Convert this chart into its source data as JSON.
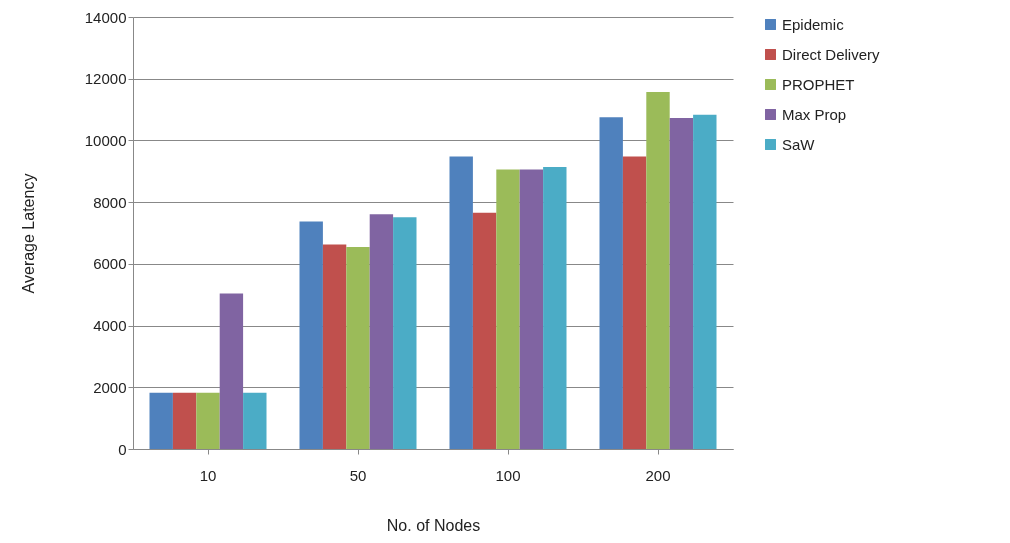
{
  "chart_data": {
    "type": "bar",
    "xlabel": "No. of Nodes",
    "ylabel": "Average Latency",
    "categories": [
      "10",
      "50",
      "100",
      "200"
    ],
    "series": [
      {
        "name": "Epidemic",
        "color": "#4f81bd",
        "values": [
          1820,
          7370,
          9480,
          10750
        ]
      },
      {
        "name": "Direct Delivery",
        "color": "#c0504d",
        "values": [
          1820,
          6630,
          7660,
          9480
        ]
      },
      {
        "name": "PROPHET",
        "color": "#9bbb59",
        "values": [
          1820,
          6550,
          9060,
          11570
        ]
      },
      {
        "name": "Max Prop",
        "color": "#8064a2",
        "values": [
          5040,
          7610,
          9060,
          10730
        ]
      },
      {
        "name": "SaW",
        "color": "#4bacc6",
        "values": [
          1820,
          7510,
          9140,
          10830
        ]
      }
    ],
    "ylim": [
      0,
      14000
    ],
    "yticks": [
      0,
      2000,
      4000,
      6000,
      8000,
      10000,
      12000,
      14000
    ],
    "grid": "y",
    "legend": "right"
  }
}
